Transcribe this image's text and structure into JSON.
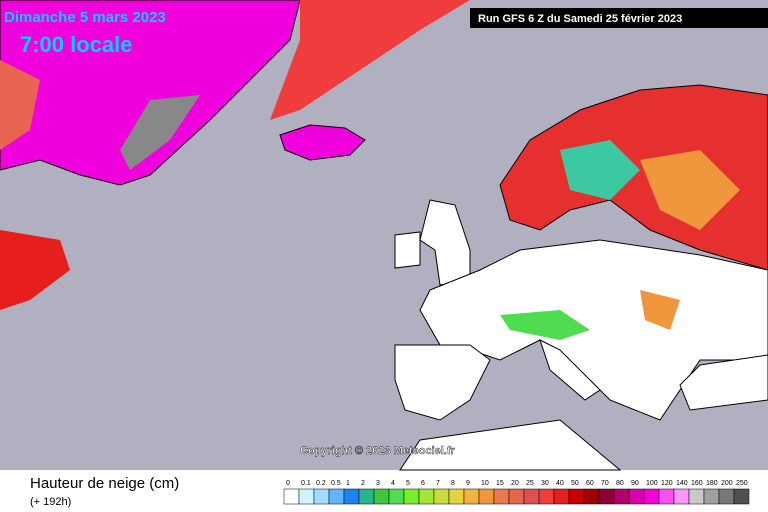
{
  "header": {
    "date": "Dimanche 5 mars 2023",
    "time": "7:00 locale",
    "run": "Run GFS 6 Z du Samedi 25 février 2023"
  },
  "map": {
    "copyright": "Copyright © 2023 Meteociel.fr"
  },
  "legend": {
    "title": "Hauteur de neige (cm)",
    "subtitle": "(+ 192h)",
    "items": [
      {
        "label": "0",
        "color": "#ffffff"
      },
      {
        "label": "0.1",
        "color": "#d0f4ff"
      },
      {
        "label": "0.2",
        "color": "#a0dcff"
      },
      {
        "label": "0.5",
        "color": "#64b4ff"
      },
      {
        "label": "1",
        "color": "#1e82f0"
      },
      {
        "label": "2",
        "color": "#2ab48c"
      },
      {
        "label": "3",
        "color": "#3cc83c"
      },
      {
        "label": "4",
        "color": "#50dc50"
      },
      {
        "label": "5",
        "color": "#78f028"
      },
      {
        "label": "6",
        "color": "#a0e632"
      },
      {
        "label": "7",
        "color": "#c8dc3c"
      },
      {
        "label": "8",
        "color": "#e6d23c"
      },
      {
        "label": "9",
        "color": "#f0b43c"
      },
      {
        "label": "10",
        "color": "#f0963c"
      },
      {
        "label": "15",
        "color": "#f07850"
      },
      {
        "label": "20",
        "color": "#e66450"
      },
      {
        "label": "25",
        "color": "#dc5050"
      },
      {
        "label": "30",
        "color": "#f03c3c"
      },
      {
        "label": "40",
        "color": "#e61e1e"
      },
      {
        "label": "50",
        "color": "#c80000"
      },
      {
        "label": "60",
        "color": "#a00000"
      },
      {
        "label": "70",
        "color": "#8c0032"
      },
      {
        "label": "80",
        "color": "#b4006e"
      },
      {
        "label": "90",
        "color": "#dc00aa"
      },
      {
        "label": "100",
        "color": "#f000dc"
      },
      {
        "label": "120",
        "color": "#fa50f0"
      },
      {
        "label": "140",
        "color": "#fa96fa"
      },
      {
        "label": "160",
        "color": "#c8c8c8"
      },
      {
        "label": "180",
        "color": "#a0a0a0"
      },
      {
        "label": "200",
        "color": "#787878"
      },
      {
        "label": "250",
        "color": "#505050"
      }
    ]
  }
}
